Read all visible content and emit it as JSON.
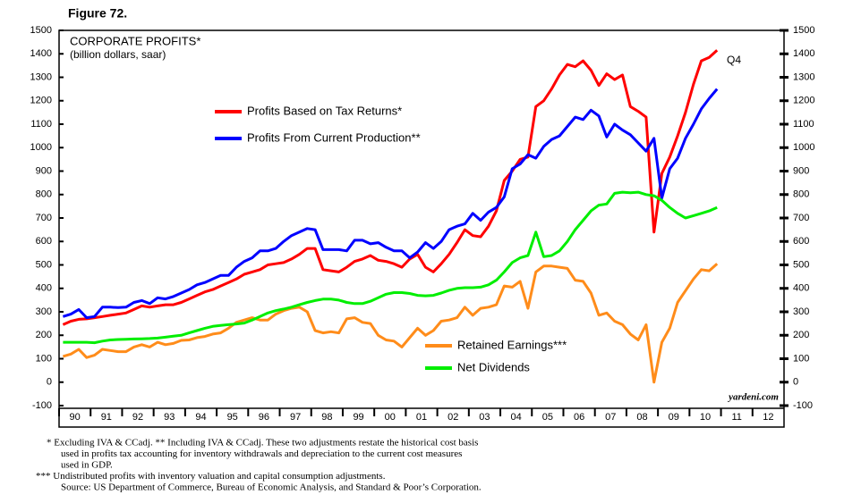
{
  "chart_data": {
    "type": "line",
    "figure_label": "Figure 72.",
    "title": "CORPORATE PROFITS*",
    "subtitle": "(billion dollars, saar)",
    "end_label": "Q4",
    "watermark": "yardeni.com",
    "footnotes": [
      "*   Excluding IVA & CCadj. ** Including IVA & CCadj. These two adjustments restate the historical cost basis",
      "used in profits tax accounting for inventory withdrawals and depreciation to the current cost measures",
      "used in GDP.",
      "***   Undistributed profits with inventory valuation and capital consumption adjustments.",
      "Source: US Department of Commerce, Bureau of Economic Analysis, and Standard & Poor’s Corporation."
    ],
    "x": [
      1990.125,
      1990.375,
      1990.625,
      1990.875,
      1991.125,
      1991.375,
      1991.625,
      1991.875,
      1992.125,
      1992.375,
      1992.625,
      1992.875,
      1993.125,
      1993.375,
      1993.625,
      1993.875,
      1994.125,
      1994.375,
      1994.625,
      1994.875,
      1995.125,
      1995.375,
      1995.625,
      1995.875,
      1996.125,
      1996.375,
      1996.625,
      1996.875,
      1997.125,
      1997.375,
      1997.625,
      1997.875,
      1998.125,
      1998.375,
      1998.625,
      1998.875,
      1999.125,
      1999.375,
      1999.625,
      1999.875,
      2000.125,
      2000.375,
      2000.625,
      2000.875,
      2001.125,
      2001.375,
      2001.625,
      2001.875,
      2002.125,
      2002.375,
      2002.625,
      2002.875,
      2003.125,
      2003.375,
      2003.625,
      2003.875,
      2004.125,
      2004.375,
      2004.625,
      2004.875,
      2005.125,
      2005.375,
      2005.625,
      2005.875,
      2006.125,
      2006.375,
      2006.625,
      2006.875,
      2007.125,
      2007.375,
      2007.625,
      2007.875,
      2008.125,
      2008.375,
      2008.625,
      2008.875,
      2009.125,
      2009.375,
      2009.625,
      2009.875,
      2010.125,
      2010.375,
      2010.625,
      2010.875
    ],
    "series": [
      {
        "name": "Profits Based on Tax Returns*",
        "color": "#ff0000",
        "values": [
          245,
          260,
          268,
          270,
          275,
          280,
          285,
          290,
          295,
          310,
          325,
          320,
          325,
          330,
          330,
          340,
          355,
          370,
          385,
          395,
          410,
          425,
          440,
          460,
          470,
          480,
          500,
          505,
          510,
          525,
          545,
          570,
          570,
          480,
          475,
          470,
          490,
          515,
          525,
          540,
          520,
          515,
          505,
          490,
          525,
          545,
          490,
          470,
          505,
          545,
          595,
          650,
          625,
          620,
          665,
          730,
          860,
          900,
          950,
          960,
          1175,
          1200,
          1250,
          1310,
          1355,
          1345,
          1370,
          1330,
          1265,
          1315,
          1290,
          1310,
          1175,
          1155,
          1130,
          640,
          890,
          960,
          1050,
          1150,
          1270,
          1370,
          1385,
          1415
        ]
      },
      {
        "name": "Profits From Current Production**",
        "color": "#0000ff",
        "values": [
          280,
          290,
          310,
          275,
          280,
          320,
          320,
          318,
          320,
          340,
          348,
          335,
          360,
          355,
          365,
          380,
          395,
          415,
          425,
          440,
          455,
          455,
          490,
          515,
          530,
          560,
          560,
          570,
          600,
          625,
          640,
          655,
          650,
          565,
          565,
          565,
          560,
          605,
          605,
          590,
          595,
          575,
          560,
          560,
          530,
          555,
          595,
          570,
          600,
          650,
          665,
          675,
          720,
          690,
          725,
          745,
          790,
          910,
          930,
          970,
          955,
          1005,
          1035,
          1050,
          1090,
          1130,
          1120,
          1160,
          1135,
          1045,
          1100,
          1075,
          1055,
          1020,
          985,
          1040,
          785,
          910,
          955,
          1040,
          1100,
          1165,
          1210,
          1250
        ]
      },
      {
        "name": "Retained Earnings***",
        "color": "#ff8c1a",
        "values": [
          110,
          120,
          140,
          105,
          115,
          140,
          135,
          130,
          130,
          150,
          160,
          150,
          170,
          160,
          165,
          178,
          180,
          190,
          195,
          205,
          210,
          230,
          255,
          265,
          275,
          265,
          265,
          290,
          305,
          315,
          320,
          300,
          220,
          210,
          215,
          210,
          270,
          275,
          255,
          250,
          200,
          180,
          175,
          150,
          190,
          230,
          200,
          220,
          260,
          265,
          275,
          320,
          285,
          315,
          320,
          330,
          410,
          405,
          430,
          315,
          470,
          495,
          495,
          490,
          485,
          435,
          430,
          380,
          285,
          295,
          260,
          245,
          205,
          180,
          245,
          0,
          170,
          230,
          340,
          390,
          440,
          480,
          475,
          505
        ]
      },
      {
        "name": "Net Dividends",
        "color": "#00ee00",
        "values": [
          170,
          170,
          170,
          170,
          168,
          175,
          180,
          182,
          183,
          184,
          185,
          186,
          188,
          192,
          196,
          200,
          210,
          220,
          230,
          238,
          242,
          245,
          248,
          252,
          265,
          280,
          295,
          305,
          312,
          320,
          330,
          340,
          348,
          354,
          354,
          350,
          340,
          335,
          335,
          345,
          360,
          375,
          382,
          382,
          378,
          370,
          368,
          370,
          380,
          392,
          400,
          403,
          403,
          405,
          415,
          435,
          470,
          510,
          530,
          540,
          640,
          535,
          540,
          560,
          600,
          650,
          690,
          730,
          755,
          760,
          805,
          810,
          808,
          810,
          800,
          795,
          775,
          745,
          720,
          700,
          710,
          720,
          730,
          745
        ]
      }
    ],
    "xlim": [
      1990,
      2013
    ],
    "xticks": [
      {
        "value": 1990.5,
        "label": "90"
      },
      {
        "value": 1991.5,
        "label": "91"
      },
      {
        "value": 1992.5,
        "label": "92"
      },
      {
        "value": 1993.5,
        "label": "93"
      },
      {
        "value": 1994.5,
        "label": "94"
      },
      {
        "value": 1995.5,
        "label": "95"
      },
      {
        "value": 1996.5,
        "label": "96"
      },
      {
        "value": 1997.5,
        "label": "97"
      },
      {
        "value": 1998.5,
        "label": "98"
      },
      {
        "value": 1999.5,
        "label": "99"
      },
      {
        "value": 2000.5,
        "label": "00"
      },
      {
        "value": 2001.5,
        "label": "01"
      },
      {
        "value": 2002.5,
        "label": "02"
      },
      {
        "value": 2003.5,
        "label": "03"
      },
      {
        "value": 2004.5,
        "label": "04"
      },
      {
        "value": 2005.5,
        "label": "05"
      },
      {
        "value": 2006.5,
        "label": "06"
      },
      {
        "value": 2007.5,
        "label": "07"
      },
      {
        "value": 2008.5,
        "label": "08"
      },
      {
        "value": 2009.5,
        "label": "09"
      },
      {
        "value": 2010.5,
        "label": "10"
      },
      {
        "value": 2011.5,
        "label": "11"
      },
      {
        "value": 2012.5,
        "label": "12"
      }
    ],
    "ylim": [
      -100,
      1500
    ],
    "yticks": [
      -100,
      0,
      100,
      200,
      300,
      400,
      500,
      600,
      700,
      800,
      900,
      1000,
      1100,
      1200,
      1300,
      1400,
      1500
    ]
  }
}
